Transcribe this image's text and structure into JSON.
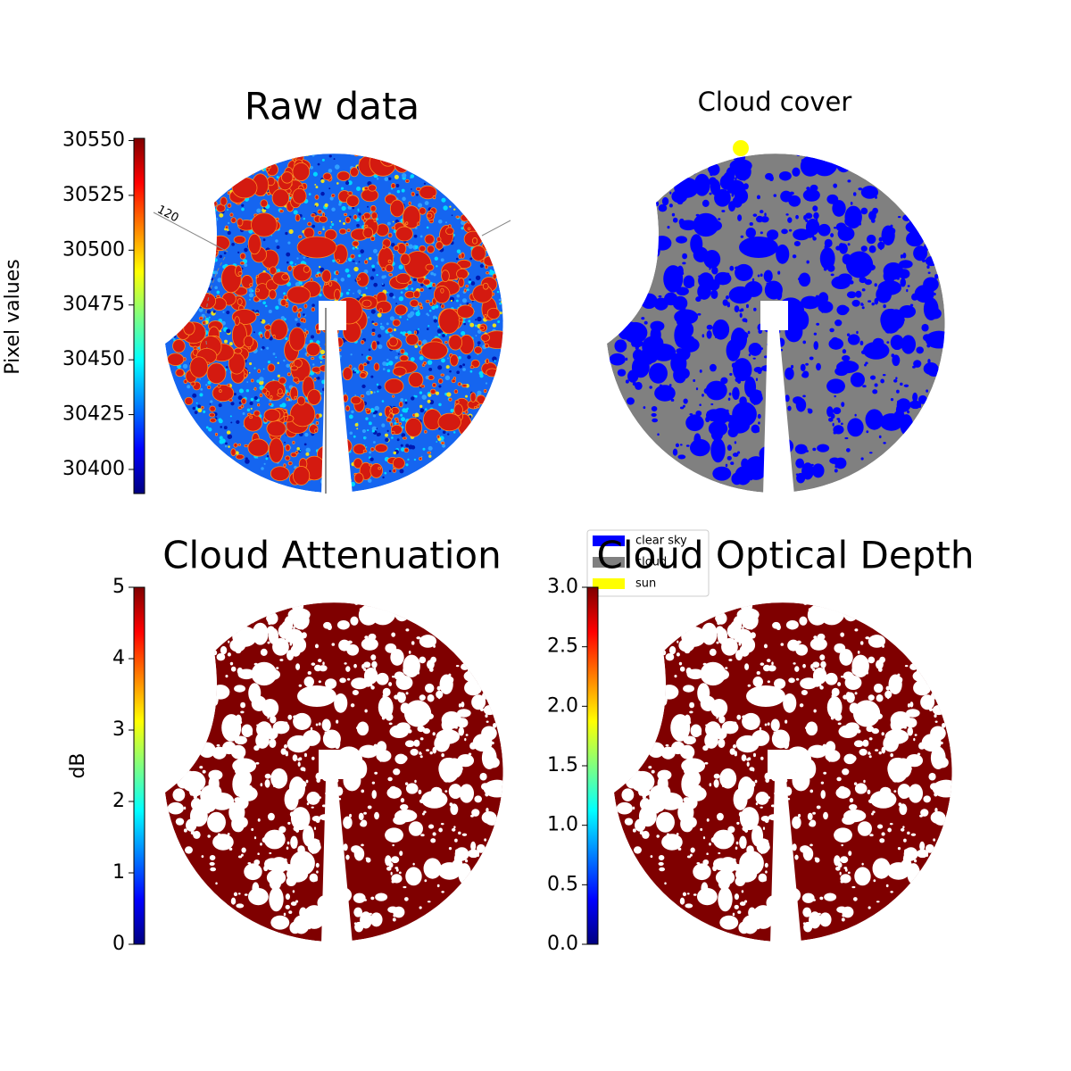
{
  "chart_data": [
    {
      "type": "image",
      "title": "Raw data",
      "colorbar_label": "Pixel values",
      "colormap": "jet",
      "clim": [
        30389,
        30551
      ],
      "cticks": [
        30400,
        30425,
        30450,
        30475,
        30500,
        30525,
        30550
      ],
      "annotations": [
        "120"
      ]
    },
    {
      "type": "image",
      "title": "Cloud cover",
      "legend": [
        {
          "name": "clear sky",
          "color": "#0000ff"
        },
        {
          "name": "cloud",
          "color": "#808080"
        },
        {
          "name": "sun",
          "color": "#ffff00"
        }
      ]
    },
    {
      "type": "image",
      "title": "Cloud Attenuation",
      "colorbar_label": "dB",
      "colormap": "jet",
      "clim": [
        0,
        5
      ],
      "cticks": [
        0,
        1,
        2,
        3,
        4,
        5
      ]
    },
    {
      "type": "image",
      "title": "Cloud Optical Depth",
      "colormap": "jet",
      "clim": [
        0,
        3
      ],
      "cticks": [
        {
          "value": 0,
          "label": "0.0"
        },
        0.5,
        {
          "value": 1,
          "label": "1.0"
        },
        1.5,
        {
          "value": 2,
          "label": "2.0"
        },
        2.5,
        {
          "value": 3,
          "label": "3.0"
        }
      ]
    }
  ]
}
